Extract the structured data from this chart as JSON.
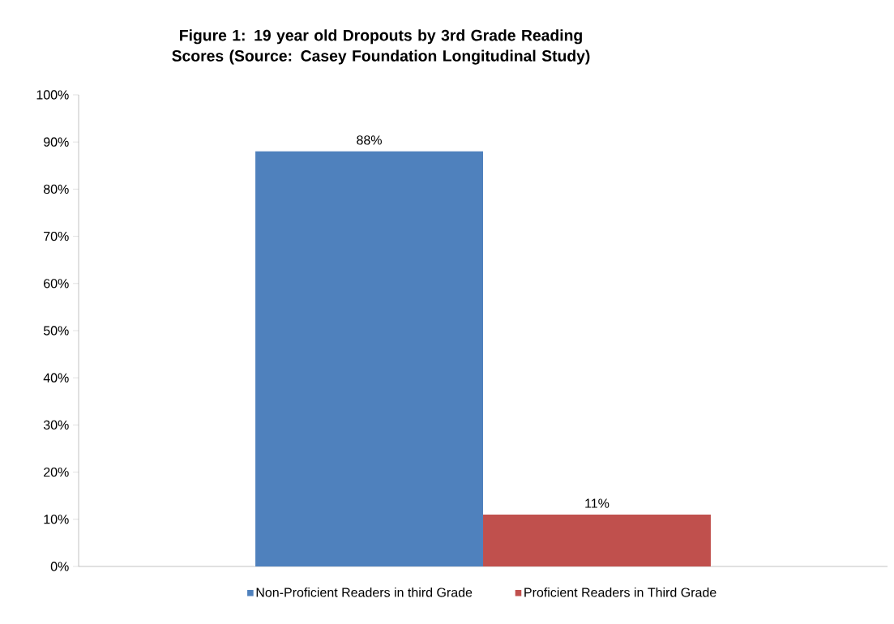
{
  "chart_data": {
    "type": "bar",
    "title": "Figure 1: 19 year old Dropouts by 3rd Grade Reading Scores (Source: Casey Foundation Longitudinal Study)",
    "categories": [
      null
    ],
    "series": [
      {
        "name": "Non-Proficient Readers in third Grade",
        "color": "#4f81bd",
        "values": [
          88
        ],
        "value_labels": [
          "88%"
        ]
      },
      {
        "name": "Proficient Readers in Third Grade",
        "color": "#c0504d",
        "values": [
          11
        ],
        "value_labels": [
          "11%"
        ]
      }
    ],
    "ylim": [
      0,
      100
    ],
    "yticks": [
      {
        "value": 0,
        "label": "0%"
      },
      {
        "value": 10,
        "label": "10%"
      },
      {
        "value": 20,
        "label": "20%"
      },
      {
        "value": 30,
        "label": "30%"
      },
      {
        "value": 40,
        "label": "40%"
      },
      {
        "value": 50,
        "label": "50%"
      },
      {
        "value": 60,
        "label": "60%"
      },
      {
        "value": 70,
        "label": "70%"
      },
      {
        "value": 80,
        "label": "80%"
      },
      {
        "value": 90,
        "label": "90%"
      },
      {
        "value": 100,
        "label": "100%"
      }
    ],
    "legend": "bottom"
  }
}
